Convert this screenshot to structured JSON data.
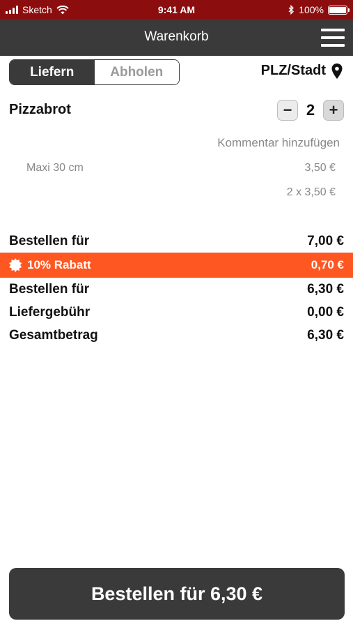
{
  "status_bar": {
    "carrier": "Sketch",
    "time": "9:41 AM",
    "battery": "100%",
    "battery_level": 1.0
  },
  "header": {
    "title": "Warenkorb",
    "menu_icon": "hamburger-menu-icon"
  },
  "delivery_toggle": {
    "options": [
      "Liefern",
      "Abholen"
    ],
    "selected": "Liefern"
  },
  "location": {
    "label": "PLZ/Stadt",
    "icon": "location-pin-icon"
  },
  "cart": {
    "items": [
      {
        "name": "Pizzabrot",
        "quantity": "2",
        "decrement_label": "−",
        "increment_label": "+",
        "comment_link": "Kommentar hinzufügen",
        "variant": "Maxi 30 cm",
        "unit_price": "3,50 €",
        "line_total": "2 x 3,50 €"
      }
    ]
  },
  "summary": {
    "subtotal": {
      "label": "Bestellen für",
      "value": "7,00 €"
    },
    "discount": {
      "label": "10% Rabatt",
      "value": "0,70 €",
      "icon": "discount-badge-icon",
      "color": "#ff5722"
    },
    "after_discount": {
      "label": "Bestellen für",
      "value": "6,30 €"
    },
    "delivery_fee": {
      "label": "Liefergebühr",
      "value": "0,00 €"
    },
    "total": {
      "label": "Gesamtbetrag",
      "value": "6,30 €"
    }
  },
  "order_button": {
    "label": "Bestellen für 6,30 €"
  },
  "colors": {
    "status_bar": "#8b0d0d",
    "nav_bar": "#3a3a3a",
    "accent": "#ff5722"
  }
}
